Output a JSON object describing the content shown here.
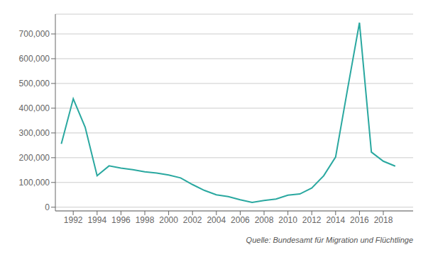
{
  "chart_data": {
    "type": "line",
    "x": [
      1991,
      1992,
      1993,
      1994,
      1995,
      1996,
      1997,
      1998,
      1999,
      2000,
      2001,
      2002,
      2003,
      2004,
      2005,
      2006,
      2007,
      2008,
      2009,
      2010,
      2011,
      2012,
      2013,
      2014,
      2015,
      2016,
      2017,
      2018,
      2019
    ],
    "values": [
      256112,
      438191,
      322842,
      127210,
      166951,
      158000,
      151700,
      143000,
      138000,
      130000,
      118306,
      91471,
      67848,
      50152,
      42908,
      30100,
      19164,
      26945,
      33033,
      48589,
      53347,
      77651,
      127023,
      202834,
      476649,
      745545,
      222683,
      185853,
      165938
    ],
    "color": "#2aa8a0",
    "xlim": [
      1990.5,
      2020.5
    ],
    "xticks": [
      1992,
      1994,
      1996,
      1998,
      2000,
      2002,
      2004,
      2006,
      2008,
      2010,
      2012,
      2014,
      2016,
      2018
    ],
    "ylim": [
      -15000,
      780000
    ],
    "yticks": [
      0,
      {
        "value": 100000,
        "label": "100,000"
      },
      {
        "value": 200000,
        "label": "200,000"
      },
      {
        "value": 300000,
        "label": "300,000"
      },
      {
        "value": 400000,
        "label": "400,000"
      },
      {
        "value": 500000,
        "label": "500,000"
      },
      {
        "value": 600000,
        "label": "600,000"
      },
      {
        "value": 700000,
        "label": "700,000"
      }
    ],
    "grid": true,
    "annotations": [
      "Quelle: Bundesamt für Migration und Flüchtlinge"
    ]
  }
}
